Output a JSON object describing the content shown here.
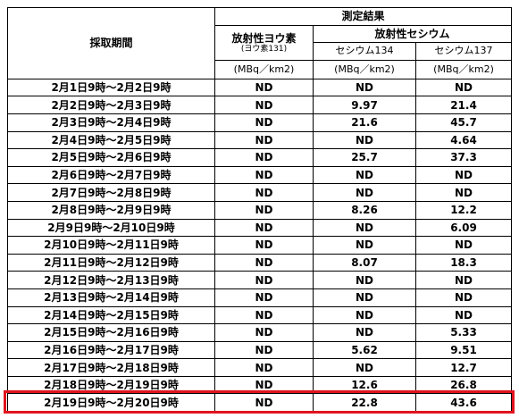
{
  "table": {
    "header": {
      "period": "採取期間",
      "result": "測定結果",
      "iodine": "放射性ヨウ素",
      "iodine_note": "(ヨウ素131)",
      "cesium": "放射性セシウム",
      "cs134": "セシウム134",
      "cs137": "セシウム137",
      "unit": "(MBq／km2)"
    },
    "rows": [
      [
        "2月1日9時～2月2日9時",
        "ND",
        "ND",
        "ND"
      ],
      [
        "2月2日9時～2月3日9時",
        "ND",
        "9.97",
        "21.4"
      ],
      [
        "2月3日9時～2月4日9時",
        "ND",
        "21.6",
        "45.7"
      ],
      [
        "2月4日9時～2月5日9時",
        "ND",
        "ND",
        "4.64"
      ],
      [
        "2月5日9時～2月6日9時",
        "ND",
        "25.7",
        "37.3"
      ],
      [
        "2月6日9時～2月7日9時",
        "ND",
        "ND",
        "ND"
      ],
      [
        "2月7日9時～2月8日9時",
        "ND",
        "ND",
        "ND"
      ],
      [
        "2月8日9時～2月9日9時",
        "ND",
        "8.26",
        "12.2"
      ],
      [
        "2月9日9時～2月10日9時",
        "ND",
        "ND",
        "6.09"
      ],
      [
        "2月10日9時～2月11日9時",
        "ND",
        "ND",
        "ND"
      ],
      [
        "2月11日9時～2月12日9時",
        "ND",
        "8.07",
        "18.3"
      ],
      [
        "2月12日9時～2月13日9時",
        "ND",
        "ND",
        "ND"
      ],
      [
        "2月13日9時～2月14日9時",
        "ND",
        "ND",
        "ND"
      ],
      [
        "2月14日9時～2月15日9時",
        "ND",
        "ND",
        "ND"
      ],
      [
        "2月15日9時～2月16日9時",
        "ND",
        "ND",
        "5.33"
      ],
      [
        "2月16日9時～2月17日9時",
        "ND",
        "5.62",
        "9.51"
      ],
      [
        "2月17日9時～2月18日9時",
        "ND",
        "ND",
        "12.7"
      ],
      [
        "2月18日9時～2月19日9時",
        "ND",
        "12.6",
        "26.8"
      ],
      [
        "2月19日9時～2月20日9時",
        "ND",
        "22.8",
        "43.6"
      ]
    ]
  }
}
